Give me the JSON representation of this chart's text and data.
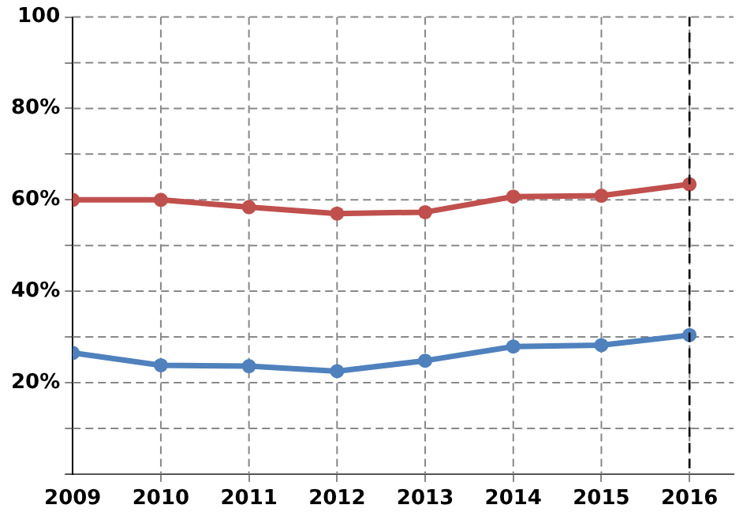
{
  "chart_data": {
    "type": "line",
    "x": [
      2009,
      2010,
      2011,
      2012,
      2013,
      2014,
      2015,
      2016
    ],
    "series": [
      {
        "color": "#c0504d",
        "values": [
          60,
          60,
          58.4,
          57,
          57.3,
          60.7,
          60.9,
          63.4
        ]
      },
      {
        "color": "#4f81bd",
        "values": [
          26.5,
          23.8,
          23.6,
          22.5,
          24.8,
          27.9,
          28.2,
          30.4
        ]
      }
    ],
    "xlim": [
      2009,
      2016.5
    ],
    "xticks": [
      2009,
      2010,
      2011,
      2012,
      2013,
      2014,
      2015,
      2016
    ],
    "ylim": [
      0,
      100
    ],
    "yticks": [
      {
        "value": 0,
        "label": null
      },
      {
        "value": 10,
        "label": null
      },
      {
        "value": 20,
        "label": "20%"
      },
      {
        "value": 30,
        "label": null
      },
      {
        "value": 40,
        "label": "40%"
      },
      {
        "value": 50,
        "label": null
      },
      {
        "value": 60,
        "label": "60%"
      },
      {
        "value": 70,
        "label": null
      },
      {
        "value": 80,
        "label": "80%"
      },
      {
        "value": 90,
        "label": null
      },
      100
    ],
    "ref_lines": [
      {
        "axis": "x",
        "value": 2016,
        "color": "#000000",
        "line_style": "dashed"
      }
    ],
    "grid": true,
    "legend": false,
    "marker": "circle",
    "line_style": "solid"
  }
}
